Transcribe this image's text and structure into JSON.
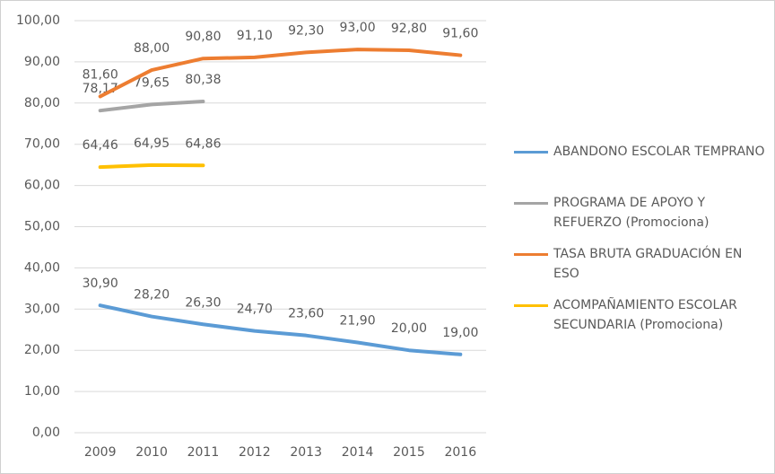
{
  "chart_data": {
    "type": "line",
    "categories": [
      "2009",
      "2010",
      "2011",
      "2012",
      "2013",
      "2014",
      "2015",
      "2016"
    ],
    "series": [
      {
        "name": "ABANDONO ESCOLAR TEMPRANO",
        "color": "#5b9bd5",
        "values": [
          30.9,
          28.2,
          26.3,
          24.7,
          23.6,
          21.9,
          20.0,
          19.0
        ],
        "value_labels": [
          "30,90",
          "28,20",
          "26,30",
          "24,70",
          "23,60",
          "21,90",
          "20,00",
          "19,00"
        ]
      },
      {
        "name": "PROGRAMA DE APOYO Y REFUERZO (Promociona)",
        "color": "#a5a5a5",
        "values": [
          78.17,
          79.65,
          80.38,
          null,
          null,
          null,
          null,
          null
        ],
        "value_labels": [
          "78,17",
          "79,65",
          "80,38",
          null,
          null,
          null,
          null,
          null
        ]
      },
      {
        "name": "TASA BRUTA GRADUACIÓN EN ESO",
        "color": "#ed7d31",
        "values": [
          81.6,
          88.0,
          90.8,
          91.1,
          92.3,
          93.0,
          92.8,
          91.6
        ],
        "value_labels": [
          "81,60",
          "88,00",
          "90,80",
          "91,10",
          "92,30",
          "93,00",
          "92,80",
          "91,60"
        ]
      },
      {
        "name": "ACOMPAÑAMIENTO ESCOLAR SECUNDARIA (Promociona)",
        "color": "#ffc000",
        "values": [
          64.46,
          64.95,
          64.86,
          null,
          null,
          null,
          null,
          null
        ],
        "value_labels": [
          "64,46",
          "64,95",
          "64,86",
          null,
          null,
          null,
          null,
          null
        ]
      }
    ],
    "ylim": [
      0,
      100
    ],
    "yticks": [
      {
        "value": 0,
        "label": "0,00"
      },
      {
        "value": 10,
        "label": "10,00"
      },
      {
        "value": 20,
        "label": "20,00"
      },
      {
        "value": 30,
        "label": "30,00"
      },
      {
        "value": 40,
        "label": "40,00"
      },
      {
        "value": 50,
        "label": "50,00"
      },
      {
        "value": 60,
        "label": "60,00"
      },
      {
        "value": 70,
        "label": "70,00"
      },
      {
        "value": 80,
        "label": "80,00"
      },
      {
        "value": 90,
        "label": "90,00"
      },
      {
        "value": 100,
        "label": "100,00"
      }
    ],
    "grid": true,
    "legend": "right"
  }
}
